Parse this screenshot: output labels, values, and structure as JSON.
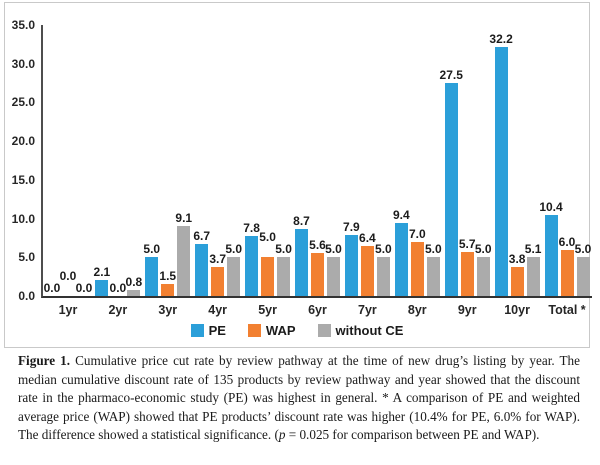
{
  "figure": {
    "caption": {
      "label": "Figure 1.",
      "body_before_p": " Cumulative price cut rate by review pathway at the time of new drug’s listing by year. The median cumulative discount rate of 135 products by review pathway and year showed that the discount rate in the pharmaco-economic study (PE) was highest in general.  * A comparison of PE and weighted average price (WAP) showed that PE products’ discount rate was higher (10.4% for PE, 6.0% for WAP). The difference showed a statistical significance. (",
      "p_symbol": "p",
      "body_after_p": " = 0.025 for comparison between PE and WAP)."
    }
  },
  "chart_data": {
    "type": "bar",
    "title": "",
    "xlabel": "",
    "ylabel": "",
    "categories": [
      "1yr",
      "2yr",
      "3yr",
      "4yr",
      "5yr",
      "6yr",
      "7yr",
      "8yr",
      "9yr",
      "10yr",
      "Total *"
    ],
    "series": [
      {
        "name": "PE",
        "color": "#2B9FD9",
        "values": [
          0.0,
          2.1,
          5.0,
          6.7,
          7.8,
          8.7,
          7.9,
          9.4,
          27.5,
          32.2,
          10.4
        ]
      },
      {
        "name": "WAP",
        "color": "#F28031",
        "values": [
          0.0,
          0.0,
          1.5,
          3.7,
          5.0,
          5.6,
          6.4,
          7.0,
          5.7,
          3.8,
          6.0
        ]
      },
      {
        "name": "without CE",
        "color": "#ABABAB",
        "values": [
          0.0,
          0.8,
          9.1,
          5.0,
          5.0,
          5.0,
          5.0,
          5.0,
          5.0,
          5.1,
          5.0
        ]
      }
    ],
    "ylim": [
      0,
      35
    ],
    "ytick_step": 5,
    "ytick_decimals": 1,
    "value_labels": true,
    "value_label_decimals": 1,
    "grid": false,
    "legend_position": "bottom"
  }
}
